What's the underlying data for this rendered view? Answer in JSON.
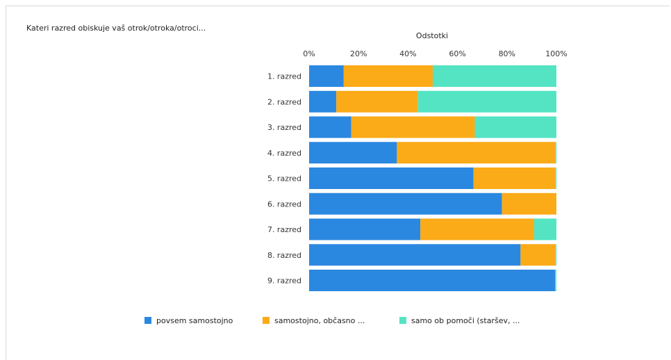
{
  "question": "Kateri razred obiskuje vaš otrok/otroka/otroci...",
  "chart_data": {
    "type": "bar",
    "orientation": "horizontal",
    "stacked": true,
    "percent": true,
    "xlabel": "Odstotki",
    "xlim": [
      0,
      100
    ],
    "x_ticks": [
      "0%",
      "20%",
      "40%",
      "60%",
      "80%",
      "100%"
    ],
    "x_tick_values": [
      0,
      20,
      40,
      60,
      80,
      100
    ],
    "legend_position": "bottom",
    "categories": [
      "1. razred",
      "2. razred",
      "3. razred",
      "4. razred",
      "5. razred",
      "6. razred",
      "7. razred",
      "8. razred",
      "9. razred"
    ],
    "series": [
      {
        "name": "povsem samostojno",
        "color": "#2b88e0",
        "values": [
          14,
          11,
          17,
          35.5,
          66.5,
          78,
          45,
          85.5,
          99.5
        ]
      },
      {
        "name": "samostojno, občasno ...",
        "color": "#fbab18",
        "values": [
          36,
          33,
          50,
          64,
          33,
          22,
          46,
          14,
          0
        ]
      },
      {
        "name": "samo ob pomoči (staršev, ...",
        "color": "#54e4c4",
        "values": [
          50,
          56,
          33,
          0.5,
          0.5,
          0,
          9,
          0.5,
          0.5
        ]
      }
    ]
  }
}
